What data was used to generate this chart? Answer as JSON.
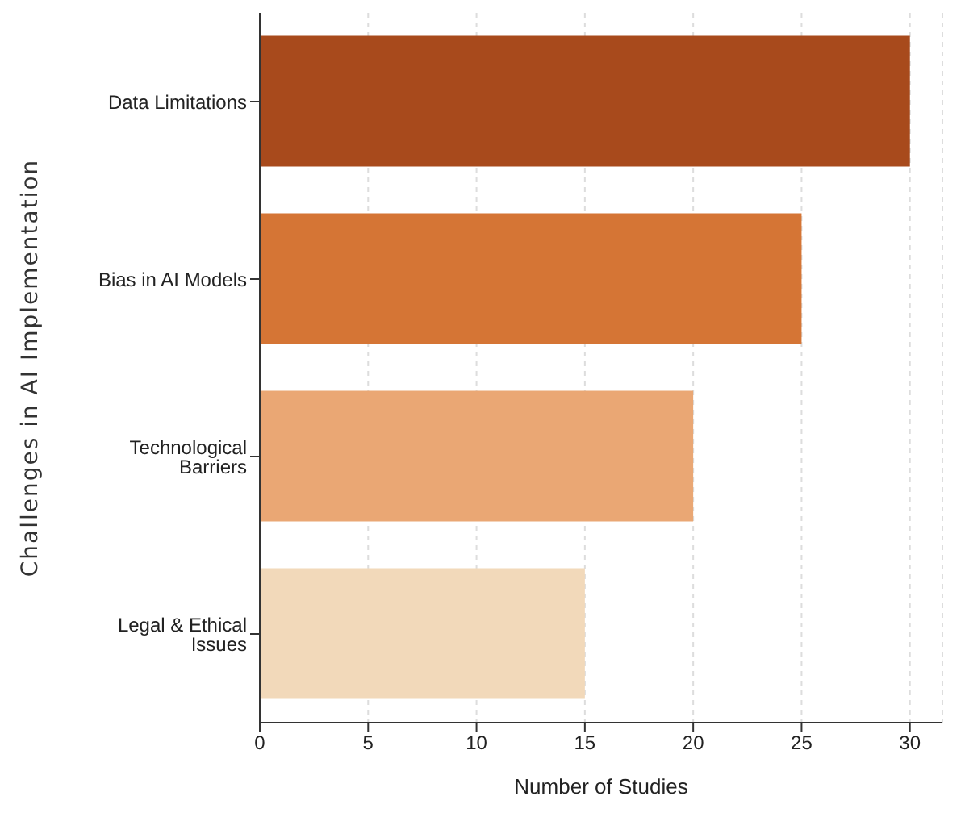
{
  "chart_data": {
    "type": "bar",
    "orientation": "horizontal",
    "xlabel": "Number of Studies",
    "ylabel": "Challenges in AI Implementation",
    "categories": [
      "Data Limitations",
      "Bias in AI Models",
      "Technological Barriers",
      "Legal & Ethical Issues"
    ],
    "values": [
      30,
      25,
      20,
      15
    ],
    "colors": [
      "#a84a1c",
      "#d57535",
      "#eaa774",
      "#f2d9ba"
    ],
    "xlim": [
      0,
      31.5
    ],
    "xticks": [
      0,
      5,
      10,
      15,
      20,
      25,
      30
    ],
    "grid": "x"
  }
}
